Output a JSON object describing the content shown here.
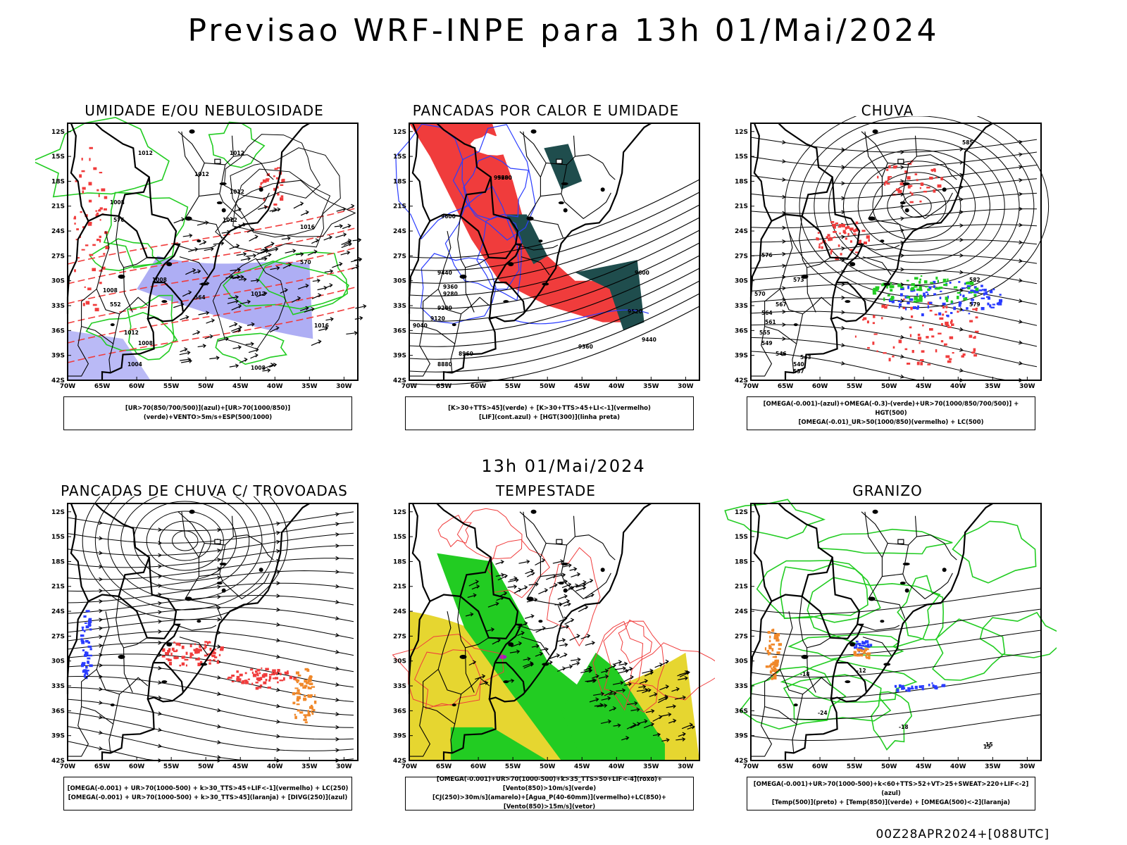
{
  "title": "Previsao WRF-INPE  para 13h 01/Mai/2024",
  "mid_title": "13h 01/Mai/2024",
  "footer": "00Z28APR2024+[088UTC]",
  "axes": {
    "lat_labels": [
      "12S",
      "15S",
      "18S",
      "21S",
      "24S",
      "27S",
      "30S",
      "33S",
      "36S",
      "39S",
      "42S"
    ],
    "lon_labels": [
      "70W",
      "65W",
      "60W",
      "55W",
      "50W",
      "45W",
      "40W",
      "35W",
      "30W"
    ]
  },
  "colors": {
    "red": "#f03c3c",
    "green": "#22cc22",
    "blue": "#2a3cff",
    "purple_shade": "#8c8cf0",
    "yellow": "#e6d630",
    "orange": "#f0882a",
    "dark_teal": "#1f4d4d",
    "black": "#000000"
  },
  "panels": [
    {
      "title": "UMIDADE E/OU NEBULOSIDADE",
      "legend": [
        "[UR>70(850/700/500)](azul)+[UR>70(1000/850)](verde)+VENTO>5m/s+ESP(500/1000)"
      ]
    },
    {
      "title": "PANCADAS POR CALOR E UMIDADE",
      "legend": [
        "[K>30+TTS>45](verde) + [K>30+TTS>45+LI<-1](vermelho)",
        "[LIF](cont.azul) + [HGT(300)](linha preta)"
      ]
    },
    {
      "title": "CHUVA",
      "legend": [
        "[OMEGA(-0.001)-(azul)+OMEGA(-0.3)-(verde)+UR>70(1000/850/700/500)] + HGT(500)",
        "[OMEGA(-0.01)_UR>50(1000/850)(vermelho) + LC(500)"
      ]
    },
    {
      "title": "PANCADAS DE CHUVA C/ TROVOADAS",
      "legend": [
        "[OMEGA(-0.001) + UR>70(1000-500) + k>30_TTS>45+LIF<-1](vermelho) + LC(250)",
        "[OMEGA(-0.001) + UR>70(1000-500) + k>30_TTS>45](laranja) + [DIVG(250)](azul)"
      ]
    },
    {
      "title": "TEMPESTADE",
      "legend": [
        "[OMEGA(-0.001)+UR>70(1000-500)+k>35_TTS>50+LIF<-4](roxo)+[Vento(850)>10m/s](verde)",
        "[CJ(250)>30m/s](amarelo)+[Agua_P(40-60mm)](vermelho)+LC(850)+[Vento(850)>15m/s](vetor)"
      ]
    },
    {
      "title": "GRANIZO",
      "legend": [
        "[OMEGA(-0.001)+UR>70(1000-500)+k<60+TTS>52+VT>25+SWEAT>220+LIF<-2](azul)",
        "[Temp(500)](preto) + [Temp(850)](verde) + [OMEGA(500)<-2](laranja)"
      ]
    }
  ],
  "contour_labels": {
    "p1": [
      "1012",
      "1012",
      "1012",
      "1012",
      "1008",
      "1012",
      "1016",
      "1008",
      "1008",
      "1012",
      "1016",
      "1012",
      "1008",
      "1004",
      "1008",
      "576",
      "570",
      "564",
      "552"
    ],
    "p2": [
      "9520",
      "9600",
      "9440",
      "9360",
      "9280",
      "9200",
      "9120",
      "9040",
      "8960",
      "8880",
      "9600",
      "9520",
      "9440",
      "9360",
      "9680"
    ],
    "p3": [
      "585",
      "576",
      "573",
      "570",
      "567",
      "564",
      "561",
      "555",
      "549",
      "546",
      "543",
      "540",
      "537",
      "582",
      "579"
    ],
    "p6": [
      "-18",
      "-24",
      "-18",
      "-15",
      "-12",
      "15"
    ]
  }
}
